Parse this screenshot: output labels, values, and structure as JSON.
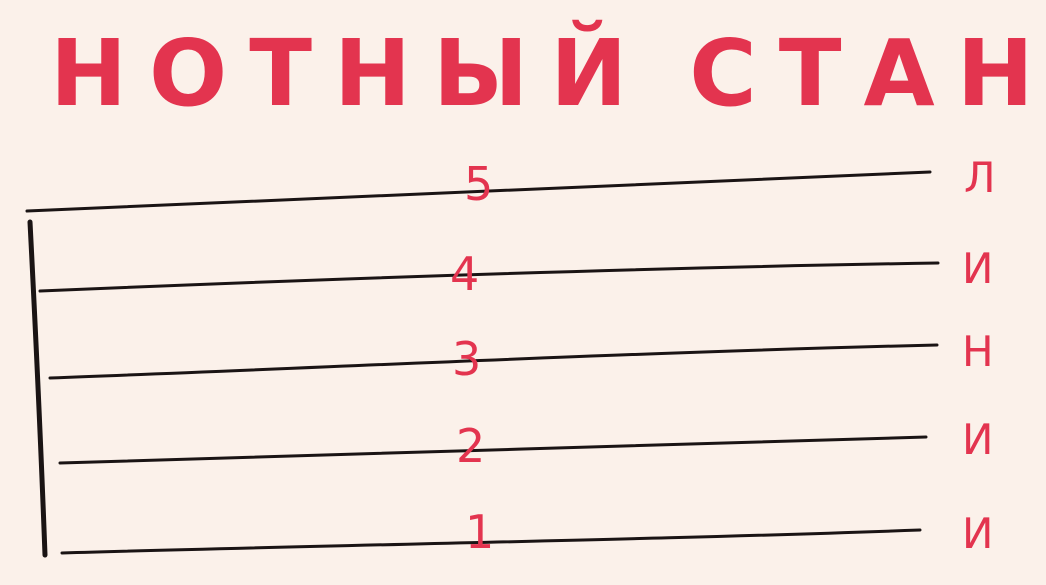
{
  "title": {
    "word1": "НОТНЫЙ",
    "word2": "СТАН"
  },
  "staff": {
    "line_numbers": [
      "5",
      "4",
      "3",
      "2",
      "1"
    ],
    "side_letters": [
      "Л",
      "И",
      "Н",
      "И",
      "И"
    ]
  },
  "colors": {
    "background": "#fbf1ea",
    "accent_red": "#e3344f",
    "ink": "#1a1414"
  }
}
